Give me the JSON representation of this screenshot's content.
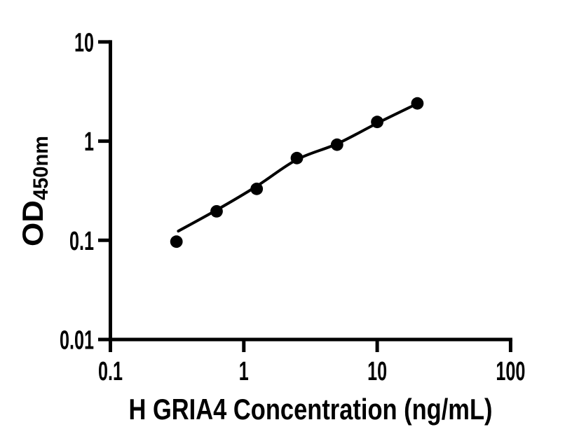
{
  "figure": {
    "background_color": "#ffffff",
    "ink_color": "#000000"
  },
  "chart_data": {
    "type": "scatter",
    "subtype": "ELISA standard curve with fitted line",
    "title": "",
    "xlabel": "H GRIA4 Concentration (ng/mL)",
    "ylabel_main": "OD",
    "ylabel_subscript": "450nm",
    "x_scale": "log",
    "y_scale": "log",
    "xlim": [
      0.1,
      100
    ],
    "ylim": [
      0.01,
      10
    ],
    "grid": false,
    "legend": null,
    "x_ticks": [
      {
        "value": 0.1,
        "label": "0.1"
      },
      {
        "value": 1,
        "label": "1"
      },
      {
        "value": 10,
        "label": "10"
      },
      {
        "value": 100,
        "label": "100"
      }
    ],
    "y_ticks": [
      {
        "value": 0.01,
        "label": "0.01"
      },
      {
        "value": 0.1,
        "label": "0.1"
      },
      {
        "value": 1,
        "label": "1"
      },
      {
        "value": 10,
        "label": "10"
      }
    ],
    "series": [
      {
        "name": "standard-data-points",
        "type": "scatter",
        "marker": "filled-circle",
        "color": "#000000",
        "x": [
          0.3125,
          0.625,
          1.25,
          2.5,
          5,
          10,
          20
        ],
        "y": [
          0.097,
          0.196,
          0.33,
          0.675,
          0.92,
          1.56,
          2.4
        ]
      },
      {
        "name": "fitted-curve",
        "type": "line",
        "color": "#000000",
        "x": [
          0.323,
          0.625,
          1.25,
          2.5,
          5,
          10,
          20
        ],
        "y": [
          0.124,
          0.202,
          0.351,
          0.651,
          0.939,
          1.516,
          2.39
        ]
      }
    ]
  }
}
